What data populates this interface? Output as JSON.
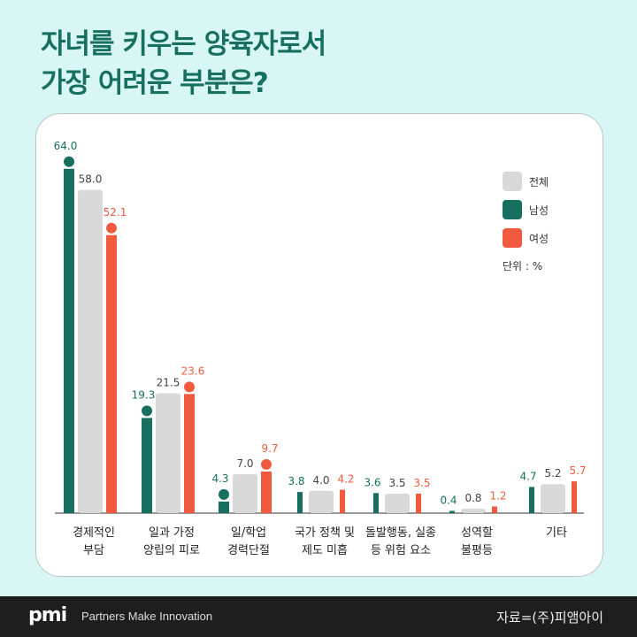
{
  "title": [
    "자녀를 키우는 양육자로서",
    "가장 어려운 부분은?"
  ],
  "footer": {
    "logo": "pmi",
    "tagline": "Partners Make Innovation",
    "source": "자료=(주)피앰아이"
  },
  "colors": {
    "total": "#d9d9d9",
    "male": "#17705f",
    "female": "#f15a3f",
    "title": "#17705f",
    "background": "#d8f6f4"
  },
  "chart_data": {
    "type": "bar",
    "categories": [
      [
        "경제적인",
        "부담"
      ],
      [
        "일과 가정",
        "양립의 피로"
      ],
      [
        "일/학업",
        "경력단절"
      ],
      [
        "국가 정책 및",
        "제도 미흡"
      ],
      [
        "돌발행동, 실종",
        "등 위험 요소"
      ],
      [
        "성역할",
        "불평등"
      ],
      [
        "기타"
      ]
    ],
    "series": [
      {
        "name": "남성",
        "values": [
          64.0,
          19.3,
          4.3,
          3.8,
          3.6,
          0.4,
          4.7
        ]
      },
      {
        "name": "전체",
        "values": [
          58.0,
          21.5,
          7.0,
          4.0,
          3.5,
          0.8,
          5.2
        ]
      },
      {
        "name": "여성",
        "values": [
          52.1,
          23.6,
          9.7,
          4.2,
          3.5,
          1.2,
          5.7
        ]
      }
    ],
    "legend": [
      "전체",
      "남성",
      "여성"
    ],
    "legend_position": "top-right",
    "unit": "단위 : %",
    "ylim": [
      0,
      70
    ],
    "grid": false
  }
}
